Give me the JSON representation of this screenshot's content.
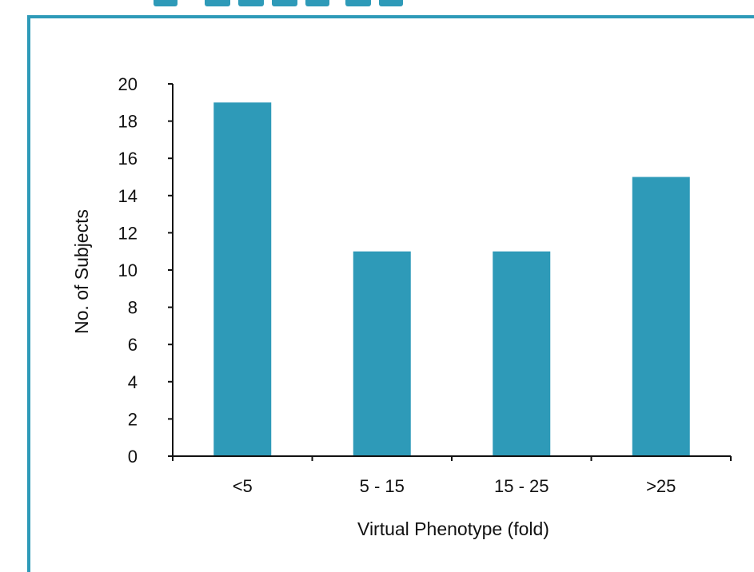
{
  "chart_data": {
    "type": "bar",
    "categories": [
      "<5",
      "5 - 15",
      "15 - 25",
      ">25"
    ],
    "values": [
      19,
      11,
      11,
      15
    ],
    "xlabel": "Virtual Phenotype (fold)",
    "ylabel": "No. of Subjects",
    "ylim": [
      0,
      20
    ],
    "yticks": [
      0,
      2,
      4,
      6,
      8,
      10,
      12,
      14,
      16,
      18,
      20
    ],
    "bar_color": "#2e9ab8",
    "grid": false,
    "legend": "none"
  },
  "colors": {
    "accent": "#2e9ab8",
    "text": "#111111",
    "axis": "#111111"
  }
}
